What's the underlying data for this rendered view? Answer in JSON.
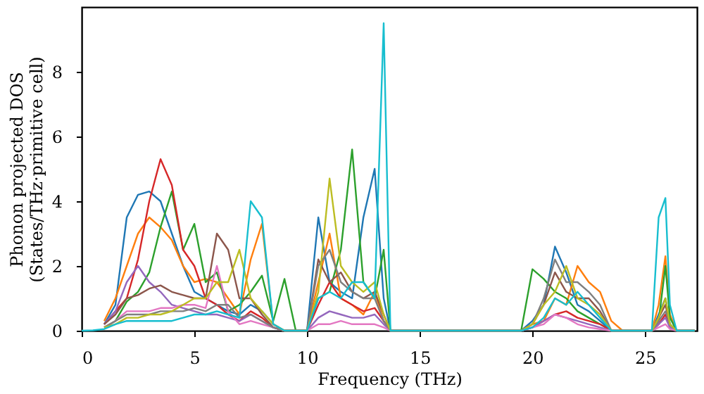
{
  "chart_data": {
    "type": "line",
    "xlabel": "Frequency (THz)",
    "ylabel": "Phonon projected DOS\n(States/THz·primitive cell)",
    "x": [
      0,
      0.5,
      1,
      1.5,
      2,
      2.5,
      3,
      3.5,
      4,
      4.5,
      5,
      5.5,
      6,
      6.5,
      7,
      7.5,
      8,
      8.5,
      9,
      9.5,
      10,
      10.5,
      11,
      11.5,
      12,
      12.5,
      13,
      13.4,
      13.7,
      14,
      19.5,
      20,
      20.5,
      21,
      21.5,
      22,
      22.5,
      23,
      23.5,
      24,
      25.3,
      25.6,
      25.9,
      26.1,
      26.4,
      27.2
    ],
    "series": [
      {
        "color": "#1f77b4",
        "values": [
          null,
          null,
          0.2,
          0.8,
          3.5,
          4.2,
          4.3,
          4.0,
          3.0,
          2.0,
          1.2,
          1.0,
          0.8,
          0.6,
          0.5,
          0.8,
          0.6,
          0.2,
          0,
          0,
          0,
          3.5,
          1.5,
          1.2,
          1.0,
          3.5,
          5.0,
          1.0,
          0,
          0,
          0,
          0.3,
          0.8,
          2.6,
          1.8,
          0.8,
          0.6,
          0.3,
          0,
          0,
          0,
          0.5,
          1.0,
          0.2,
          0,
          0
        ]
      },
      {
        "color": "#ff7f0e",
        "values": [
          null,
          null,
          0.3,
          1.0,
          2.0,
          3.0,
          3.5,
          3.2,
          2.8,
          2.0,
          1.5,
          1.6,
          1.5,
          1.0,
          0.5,
          2.2,
          3.3,
          0.2,
          0,
          0,
          0,
          1.5,
          3.0,
          1.0,
          0.8,
          0.5,
          1.2,
          0.3,
          0,
          0,
          0,
          0.2,
          0.3,
          1.0,
          0.8,
          2.0,
          1.5,
          1.2,
          0.3,
          0,
          0,
          0.8,
          2.3,
          0.5,
          0,
          0
        ]
      },
      {
        "color": "#2ca02c",
        "values": [
          null,
          null,
          0.1,
          0.3,
          0.9,
          1.2,
          1.8,
          3.2,
          4.3,
          2.5,
          3.3,
          1.5,
          1.8,
          0.6,
          0.8,
          1.2,
          1.7,
          0.3,
          1.6,
          0,
          0,
          1.0,
          1.2,
          2.5,
          5.6,
          1.5,
          1.0,
          2.5,
          0,
          0,
          0,
          1.9,
          1.6,
          1.2,
          1.0,
          0.6,
          0.4,
          0.2,
          0,
          0,
          0,
          0.3,
          2.0,
          0.4,
          0,
          0
        ]
      },
      {
        "color": "#d62728",
        "values": [
          null,
          null,
          0.2,
          0.6,
          1.0,
          2.2,
          4.0,
          5.3,
          4.5,
          2.5,
          2.0,
          1.0,
          0.8,
          0.5,
          0.3,
          0.6,
          0.4,
          0.1,
          0,
          0,
          0,
          0.8,
          1.5,
          1.0,
          0.8,
          0.6,
          0.7,
          0.3,
          0,
          0,
          0,
          0.1,
          0.3,
          0.5,
          0.6,
          0.4,
          0.3,
          0.2,
          0,
          0,
          0,
          0.2,
          0.5,
          0.1,
          0,
          0
        ]
      },
      {
        "color": "#9467bd",
        "values": [
          null,
          null,
          0.2,
          0.6,
          1.5,
          2.0,
          1.5,
          1.2,
          0.8,
          0.7,
          0.6,
          0.5,
          0.5,
          0.4,
          0.3,
          0.5,
          0.3,
          0.1,
          0,
          0,
          0,
          0.4,
          0.6,
          0.5,
          0.4,
          0.4,
          0.5,
          0.2,
          0,
          0,
          0,
          0.1,
          0.3,
          0.5,
          0.4,
          0.3,
          0.2,
          0.1,
          0,
          0,
          0,
          0.2,
          0.4,
          0.1,
          0,
          0
        ]
      },
      {
        "color": "#8c564b",
        "values": [
          null,
          null,
          0.2,
          0.5,
          1.0,
          1.1,
          1.3,
          1.4,
          1.2,
          1.1,
          1.0,
          1.0,
          3.0,
          2.5,
          1.0,
          1.0,
          0.5,
          0.1,
          0,
          0,
          0,
          2.2,
          1.5,
          1.8,
          1.2,
          1.0,
          1.2,
          0.5,
          0,
          0,
          0,
          0.2,
          0.8,
          1.8,
          1.2,
          1.0,
          1.0,
          0.6,
          0,
          0,
          0,
          0.4,
          0.8,
          0.2,
          0,
          0
        ]
      },
      {
        "color": "#e377c2",
        "values": [
          null,
          null,
          0.1,
          0.3,
          0.6,
          0.6,
          0.6,
          0.7,
          0.7,
          0.8,
          0.8,
          0.7,
          2.0,
          0.6,
          0.2,
          0.3,
          0.2,
          0.1,
          0,
          0,
          0,
          0.2,
          0.2,
          0.3,
          0.2,
          0.2,
          0.2,
          0.1,
          0,
          0,
          0,
          0.1,
          0.2,
          0.5,
          0.4,
          0.2,
          0.1,
          0.05,
          0,
          0,
          0,
          0.1,
          0.2,
          0.05,
          0,
          0
        ]
      },
      {
        "color": "#7f7f7f",
        "values": [
          null,
          null,
          0.1,
          0.3,
          0.5,
          0.5,
          0.5,
          0.6,
          0.6,
          0.6,
          0.7,
          0.6,
          0.8,
          0.8,
          0.4,
          0.5,
          0.3,
          0.1,
          0,
          0,
          0,
          2.0,
          2.5,
          1.5,
          1.2,
          1.0,
          1.0,
          0.3,
          0,
          0,
          0,
          0.2,
          1.0,
          2.2,
          1.5,
          1.5,
          1.2,
          0.8,
          0,
          0,
          0,
          0.3,
          0.6,
          0.2,
          0,
          0
        ]
      },
      {
        "color": "#bcbd22",
        "values": [
          null,
          null,
          0.1,
          0.2,
          0.4,
          0.4,
          0.5,
          0.5,
          0.6,
          0.8,
          1.0,
          1.0,
          1.5,
          1.5,
          2.5,
          1.0,
          0.6,
          0.2,
          0,
          0,
          0,
          1.2,
          4.7,
          2.0,
          1.5,
          1.2,
          1.5,
          0.5,
          0,
          0,
          0,
          0.2,
          0.8,
          1.2,
          2.0,
          1.0,
          0.8,
          0.5,
          0,
          0,
          0,
          0.4,
          1.0,
          0.2,
          0,
          0
        ]
      },
      {
        "color": "#17becf",
        "values": [
          0,
          0.01,
          0.05,
          0.2,
          0.3,
          0.3,
          0.3,
          0.3,
          0.3,
          0.4,
          0.5,
          0.5,
          0.6,
          0.5,
          0.4,
          4.0,
          3.5,
          0.2,
          0,
          0,
          0,
          1.0,
          1.2,
          1.0,
          1.5,
          1.5,
          1.0,
          9.5,
          0,
          0,
          0,
          0.1,
          0.4,
          1.0,
          0.8,
          1.2,
          0.8,
          0.4,
          0,
          0,
          0,
          3.5,
          4.1,
          0.8,
          0,
          0
        ]
      }
    ],
    "xlim": [
      0,
      27.3
    ],
    "ylim": [
      0,
      10
    ],
    "xticks": [
      0,
      5,
      10,
      15,
      20,
      25
    ],
    "yticks": [
      0,
      2,
      4,
      6,
      8
    ]
  }
}
